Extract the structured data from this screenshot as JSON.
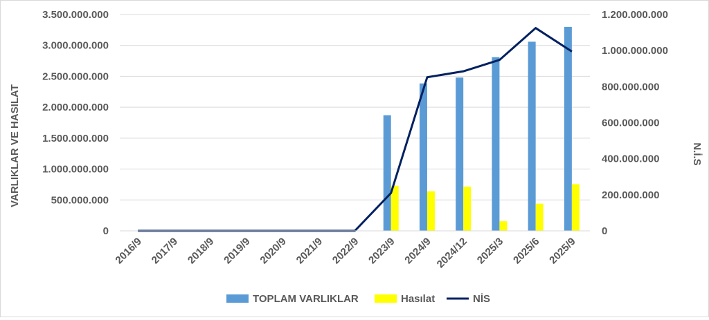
{
  "chart_data": {
    "type": "bar",
    "categories": [
      "2016/9",
      "2017/9",
      "2018/9",
      "2019/9",
      "2020/9",
      "2021/9",
      "2022/9",
      "2023/9",
      "2024/9",
      "2024/12",
      "2025/3",
      "2025/6",
      "2025/9"
    ],
    "series": [
      {
        "name": "TOPLAM VARLIKLAR",
        "type": "bar",
        "axis": "left",
        "color": "#5b9bd5",
        "values": [
          0,
          0,
          0,
          0,
          0,
          0,
          0,
          1870000000,
          2385000000,
          2480000000,
          2810000000,
          3060000000,
          3300000000
        ]
      },
      {
        "name": "Hasılat",
        "type": "bar",
        "axis": "left",
        "color": "#ffff00",
        "values": [
          0,
          0,
          0,
          0,
          0,
          0,
          0,
          730000000,
          640000000,
          715000000,
          155000000,
          440000000,
          755000000
        ]
      },
      {
        "name": "NİS",
        "type": "line",
        "axis": "right",
        "color": "#002060",
        "values": [
          0,
          0,
          0,
          0,
          0,
          0,
          0,
          210000000,
          852000000,
          885000000,
          948000000,
          1125000000,
          995000000
        ]
      }
    ],
    "ylabel": "VARLIKLAR VE HASILAT",
    "y2label": "N.İ.S",
    "ylim": [
      0,
      3500000000
    ],
    "y2lim": [
      0,
      1200000000
    ],
    "yticks": [
      {
        "value": 0,
        "label": "0"
      },
      {
        "value": 500000000,
        "label": "500.000.000"
      },
      {
        "value": 1000000000,
        "label": "1.000.000.000"
      },
      {
        "value": 1500000000,
        "label": "1.500.000.000"
      },
      {
        "value": 2000000000,
        "label": "2.000.000.000"
      },
      {
        "value": 2500000000,
        "label": "2.500.000.000"
      },
      {
        "value": 3000000000,
        "label": "3.000.000.000"
      },
      {
        "value": 3500000000,
        "label": "3.500.000.000"
      }
    ],
    "y2ticks": [
      {
        "value": 0,
        "label": "0"
      },
      {
        "value": 200000000,
        "label": "200.000.000"
      },
      {
        "value": 400000000,
        "label": "400.000.000"
      },
      {
        "value": 600000000,
        "label": "600.000.000"
      },
      {
        "value": 800000000,
        "label": "800.000.000"
      },
      {
        "value": 1000000000,
        "label": "1.000.000.000"
      },
      {
        "value": 1200000000,
        "label": "1.200.000.000"
      }
    ],
    "grid": true,
    "legend": "bottom"
  }
}
